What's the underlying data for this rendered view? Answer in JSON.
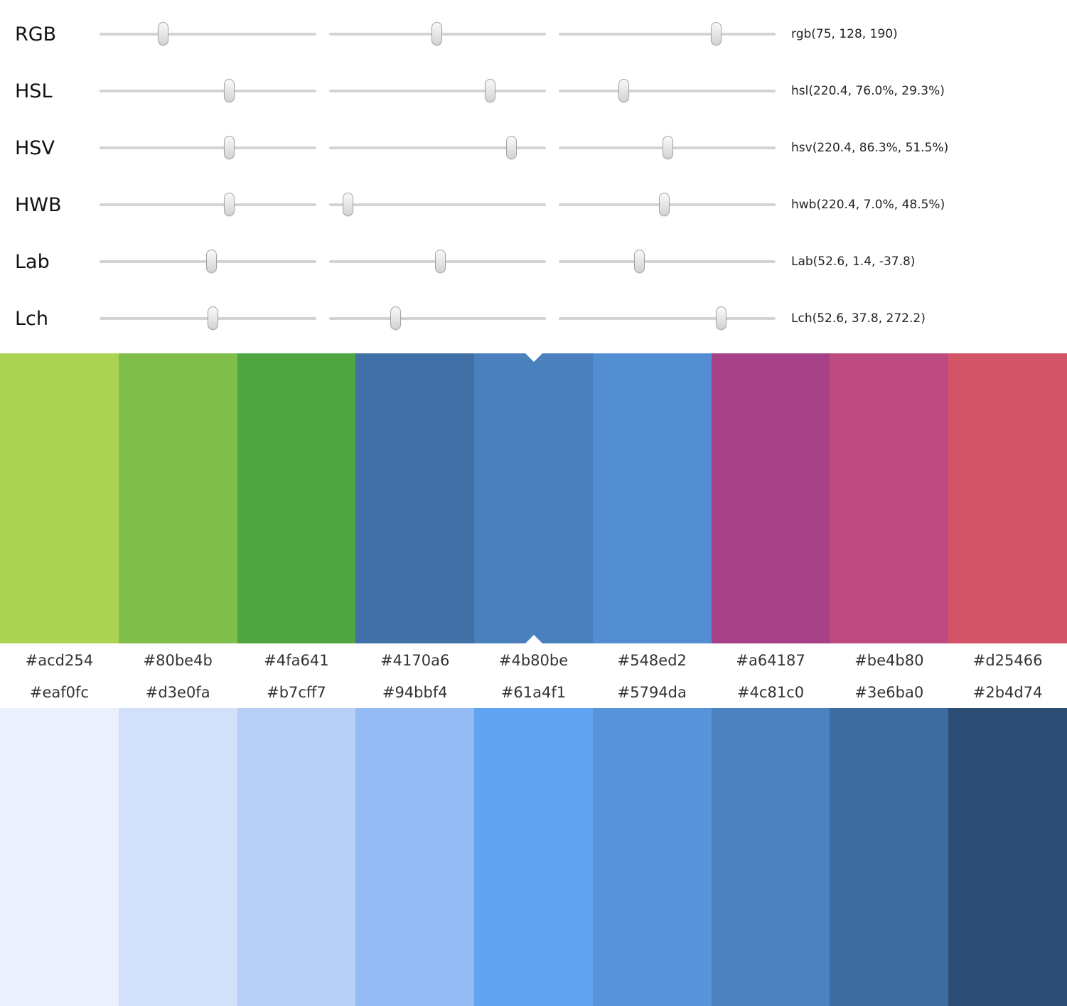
{
  "sliders": [
    {
      "label": "RGB",
      "value": "rgb(75, 128, 190)",
      "positions": [
        29.5,
        49.8,
        72.8
      ]
    },
    {
      "label": "HSL",
      "value": "hsl(220.4, 76.0%, 29.3%)",
      "positions": [
        60.0,
        74.4,
        30.2
      ]
    },
    {
      "label": "HSV",
      "value": "hsv(220.4, 86.3%, 51.5%)",
      "positions": [
        60.0,
        84.3,
        50.5
      ]
    },
    {
      "label": "HWB",
      "value": "hwb(220.4, 7.0%, 48.5%)",
      "positions": [
        60.0,
        8.9,
        48.9
      ]
    },
    {
      "label": "Lab",
      "value": "Lab(52.6, 1.4, -37.8)",
      "positions": [
        51.8,
        51.5,
        37.4
      ]
    },
    {
      "label": "Lch",
      "value": "Lch(52.6, 37.8, 272.2)",
      "positions": [
        52.5,
        30.8,
        75.1
      ]
    }
  ],
  "palette_top": {
    "selected_index": 4,
    "swatches": [
      {
        "hex": "#acd254"
      },
      {
        "hex": "#80be4b"
      },
      {
        "hex": "#4fa641"
      },
      {
        "hex": "#4170a6"
      },
      {
        "hex": "#4b80be"
      },
      {
        "hex": "#548ed2"
      },
      {
        "hex": "#a64187"
      },
      {
        "hex": "#be4b80"
      },
      {
        "hex": "#d25466"
      }
    ]
  },
  "palette_bottom": {
    "swatches": [
      {
        "hex": "#eaf0fc"
      },
      {
        "hex": "#d3e0fa"
      },
      {
        "hex": "#b7cff7"
      },
      {
        "hex": "#94bbf4"
      },
      {
        "hex": "#61a4f1"
      },
      {
        "hex": "#5794da"
      },
      {
        "hex": "#4c81c0"
      },
      {
        "hex": "#3e6ba0"
      },
      {
        "hex": "#2b4d74"
      }
    ]
  }
}
